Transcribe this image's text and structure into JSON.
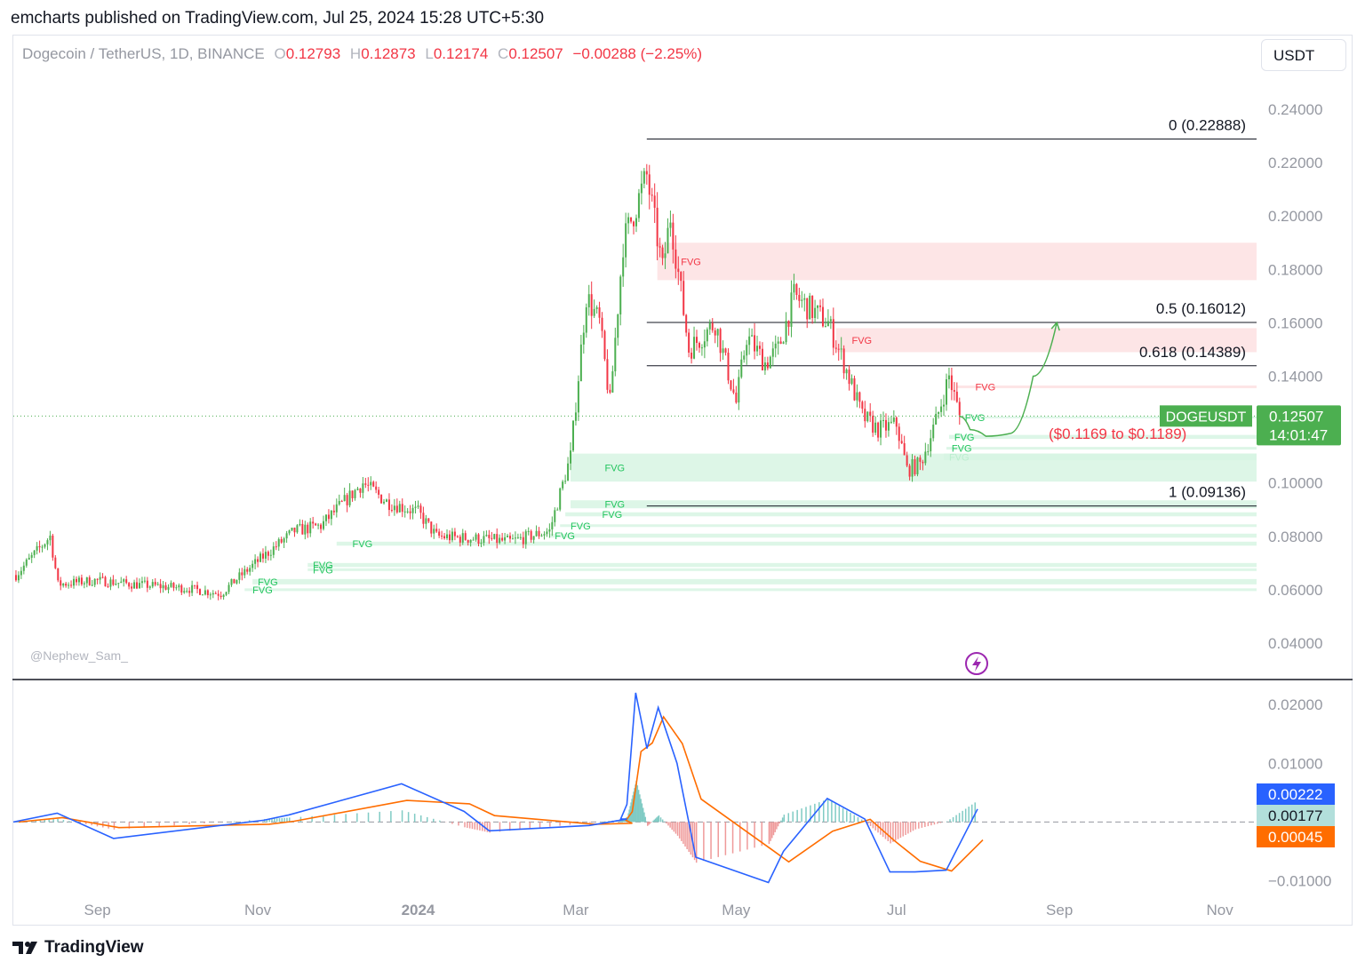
{
  "header": {
    "published": "emcharts published on TradingView.com, Jul 25, 2024 15:28 UTC+5:30",
    "currency_button": "USDT"
  },
  "legend": {
    "symbol": "Dogecoin / TetherUS, 1D, BINANCE",
    "open_key": "O",
    "open": "0.12793",
    "high_key": "H",
    "high": "0.12873",
    "low_key": "L",
    "low": "0.12174",
    "close_key": "C",
    "close": "0.12507",
    "change": "−0.00288 (−2.25%)"
  },
  "watermark": "@Nephew_Sam_",
  "footer": {
    "logo_text": "TradingView"
  },
  "colors": {
    "up": "#4caf50",
    "down": "#f23645",
    "fvg_bull": "#d7f5e3",
    "fvg_bear": "#fde0e2",
    "macd": "#2962ff",
    "signal": "#ff6d00"
  },
  "chart_data": [
    {
      "type": "candlestick",
      "symbol_tag": "DOGEUSDT",
      "last_price": "0.12507",
      "countdown": "14:01:47",
      "ylim": [
        0.03,
        0.25
      ],
      "yticks": [
        "0.24000",
        "0.22000",
        "0.20000",
        "0.18000",
        "0.16000",
        "0.14000",
        "0.12000",
        "0.10000",
        "0.08000",
        "0.06000",
        "0.04000"
      ],
      "xticks": [
        "Sep",
        "Nov",
        "2024",
        "Mar",
        "May",
        "Jul",
        "Sep",
        "Nov"
      ],
      "fib_levels": [
        {
          "label": "0 (0.22888)",
          "value": 0.22888
        },
        {
          "label": "0.5 (0.16012)",
          "value": 0.16012
        },
        {
          "label": "0.618 (0.14389)",
          "value": 0.14389
        },
        {
          "label": "1 (0.09136)",
          "value": 0.09136
        }
      ],
      "target_zone_label": "($0.1169 to $0.1189)",
      "fvg_label": "FVG",
      "anchors": [
        [
          "2023-08-01",
          0.0655
        ],
        [
          "2023-08-14",
          0.08
        ],
        [
          "2023-08-17",
          0.062
        ],
        [
          "2023-08-31",
          0.0635
        ],
        [
          "2023-09-15",
          0.062
        ],
        [
          "2023-10-05",
          0.0605
        ],
        [
          "2023-10-18",
          0.0585
        ],
        [
          "2023-10-24",
          0.064
        ],
        [
          "2023-11-05",
          0.074
        ],
        [
          "2023-11-15",
          0.082
        ],
        [
          "2023-11-25",
          0.084
        ],
        [
          "2023-12-11",
          0.1
        ],
        [
          "2023-12-20",
          0.093
        ],
        [
          "2024-01-01",
          0.089
        ],
        [
          "2024-01-08",
          0.08
        ],
        [
          "2024-01-25",
          0.079
        ],
        [
          "2024-02-05",
          0.078
        ],
        [
          "2024-02-20",
          0.082
        ],
        [
          "2024-02-28",
          0.11
        ],
        [
          "2024-03-05",
          0.17
        ],
        [
          "2024-03-10",
          0.16
        ],
        [
          "2024-03-14",
          0.13
        ],
        [
          "2024-03-19",
          0.19
        ],
        [
          "2024-03-28",
          0.215
        ],
        [
          "2024-04-03",
          0.18
        ],
        [
          "2024-04-06",
          0.2
        ],
        [
          "2024-04-13",
          0.15
        ],
        [
          "2024-04-23",
          0.16
        ],
        [
          "2024-05-01",
          0.13
        ],
        [
          "2024-05-05",
          0.155
        ],
        [
          "2024-05-12",
          0.145
        ],
        [
          "2024-05-17",
          0.15
        ],
        [
          "2024-05-23",
          0.17
        ],
        [
          "2024-06-05",
          0.16
        ],
        [
          "2024-06-11",
          0.145
        ],
        [
          "2024-06-18",
          0.125
        ],
        [
          "2024-06-24",
          0.12
        ],
        [
          "2024-07-01",
          0.122
        ],
        [
          "2024-07-05",
          0.105
        ],
        [
          "2024-07-10",
          0.107
        ],
        [
          "2024-07-16",
          0.123
        ],
        [
          "2024-07-21",
          0.14
        ],
        [
          "2024-07-25",
          0.1251
        ]
      ],
      "fvg_zones": [
        {
          "kind": "bear",
          "from": "2024-04-01",
          "lo": 0.176,
          "hi": 0.19,
          "label_at": "2024-04-10"
        },
        {
          "kind": "bear",
          "from": "2024-06-08",
          "lo": 0.149,
          "hi": 0.158,
          "label_at": "2024-06-14"
        },
        {
          "kind": "bear",
          "from": "2024-07-24",
          "lo": 0.1355,
          "hi": 0.1365,
          "label_at": "2024-07-31"
        },
        {
          "kind": "bull",
          "from": "2024-07-25",
          "lo": 0.1243,
          "hi": 0.1249,
          "label_at": "2024-07-27"
        },
        {
          "kind": "bull",
          "from": "2024-07-21",
          "lo": 0.1165,
          "hi": 0.118,
          "label_at": "2024-07-23"
        },
        {
          "kind": "bull",
          "from": "2024-07-20",
          "lo": 0.1125,
          "hi": 0.1135,
          "label_at": "2024-07-22"
        },
        {
          "kind": "bull",
          "from": "2024-07-19",
          "lo": 0.1085,
          "hi": 0.111,
          "label_at": "2024-07-21"
        },
        {
          "kind": "bull",
          "from": "2024-02-28",
          "lo": 0.1005,
          "hi": 0.111,
          "label_at": "2024-03-12"
        },
        {
          "kind": "bull",
          "from": "2024-02-28",
          "lo": 0.0905,
          "hi": 0.0935,
          "label_at": "2024-03-12"
        },
        {
          "kind": "bull",
          "from": "2024-02-26",
          "lo": 0.0875,
          "hi": 0.089,
          "label_at": "2024-03-11"
        },
        {
          "kind": "bull",
          "from": "2024-02-24",
          "lo": 0.0835,
          "hi": 0.0845,
          "label_at": "2024-02-28"
        },
        {
          "kind": "bull",
          "from": "2024-02-20",
          "lo": 0.0795,
          "hi": 0.081,
          "label_at": "2024-02-22"
        },
        {
          "kind": "bull",
          "from": "2023-12-01",
          "lo": 0.0765,
          "hi": 0.078,
          "label_at": "2023-12-07"
        },
        {
          "kind": "bull",
          "from": "2023-11-20",
          "lo": 0.0685,
          "hi": 0.07,
          "label_at": "2023-11-22"
        },
        {
          "kind": "bull",
          "from": "2023-11-20",
          "lo": 0.067,
          "hi": 0.068,
          "label_at": "2023-11-22"
        },
        {
          "kind": "bull",
          "from": "2023-10-30",
          "lo": 0.062,
          "hi": 0.064,
          "label_at": "2023-11-01"
        },
        {
          "kind": "bull",
          "from": "2023-10-27",
          "lo": 0.0595,
          "hi": 0.0605,
          "label_at": "2023-10-30"
        }
      ],
      "projection": [
        [
          "2024-07-25",
          0.125
        ],
        [
          "2024-07-29",
          0.12
        ],
        [
          "2024-08-04",
          0.1175
        ],
        [
          "2024-08-13",
          0.1185
        ],
        [
          "2024-08-22",
          0.14
        ],
        [
          "2024-08-31",
          0.1601
        ]
      ],
      "x_domain": [
        "2023-07-31",
        "2024-11-15"
      ]
    },
    {
      "type": "macd",
      "ylim": [
        -0.0125,
        0.0235
      ],
      "yticks": [
        "0.02000",
        "0.01000",
        "−0.01000"
      ],
      "last_values": {
        "macd": "0.00222",
        "histogram": "0.00177",
        "signal": "0.00045"
      },
      "zero": 0
    }
  ]
}
